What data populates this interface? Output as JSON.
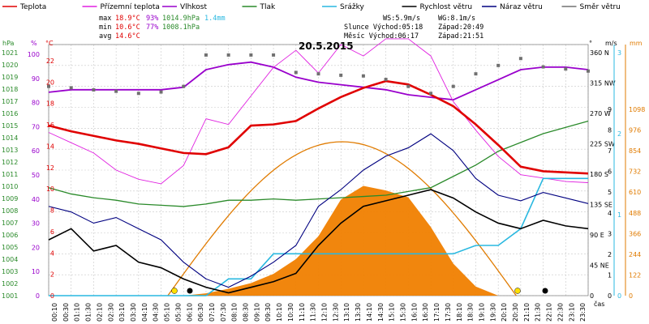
{
  "chart_data": {
    "type": "line",
    "title": "20.5.2015",
    "xlabel": "čas",
    "legend": [
      {
        "name": "Teplota",
        "color": "#e00000"
      },
      {
        "name": "Přízemní teplota",
        "color": "#e020e0"
      },
      {
        "name": "Vlhkost",
        "color": "#9900cc"
      },
      {
        "name": "Tlak",
        "color": "#2a8a2a"
      },
      {
        "name": "Srážky",
        "color": "#29b8e0"
      },
      {
        "name": "Rychlost větru",
        "color": "#000000"
      },
      {
        "name": "Náraz větru",
        "color": "#000080"
      },
      {
        "name": "Směr větru",
        "color": "#707070"
      }
    ],
    "stats": {
      "max": {
        "label": "max",
        "temp": "18.9°C",
        "hum": "93%",
        "press": "1014.9hPa",
        "rain": "1.4mm"
      },
      "min": {
        "label": "min",
        "temp": "10.6°C",
        "hum": "77%",
        "press": "1008.1hPa"
      },
      "avg": {
        "label": "avg",
        "temp": "14.6°C"
      }
    },
    "info": {
      "ws": "WS:5.9m/s",
      "wg": "WG:8.1m/s",
      "sun": "Slunce Východ:05:18",
      "sun_set": "Západ:20:49",
      "moon": "Měsíc  Východ:06:17",
      "moon_set": "Západ:21:51"
    },
    "axes_left": {
      "hpa": {
        "unit": "hPa",
        "color": "#2a8a2a",
        "ticks": [
          "1001",
          "1002",
          "1003",
          "1004",
          "1005",
          "1006",
          "1007",
          "1008",
          "1009",
          "1010",
          "1011",
          "1012",
          "1013",
          "1014",
          "1015",
          "1016",
          "1017",
          "1018",
          "1019",
          "1020",
          "1021"
        ]
      },
      "pct": {
        "unit": "%",
        "color": "#9900cc",
        "ticks": [
          "0",
          "10",
          "20",
          "30",
          "40",
          "50",
          "60",
          "70",
          "80",
          "90",
          "100"
        ]
      },
      "temp": {
        "unit": "°C",
        "color": "#e00000",
        "ticks": [
          "0",
          "2",
          "4",
          "6",
          "8",
          "10",
          "12",
          "14",
          "16",
          "18",
          "20",
          "22"
        ]
      }
    },
    "axes_right": {
      "dir": {
        "unit": "°",
        "ticks": [
          "0",
          "45 NE",
          "90 E",
          "135 SE",
          "180 S",
          "225 SW",
          "270 W",
          "315 NW",
          "360 N"
        ]
      },
      "ms": {
        "unit": "m/s",
        "ticks": [
          "0",
          "1",
          "2",
          "3",
          "4",
          "5",
          "6",
          "7",
          "8",
          "9"
        ],
        "ticks2": [
          "0",
          "1",
          "2",
          "3"
        ]
      },
      "rain": {
        "unit": "mm",
        "ticks": [
          "0",
          "122",
          "244",
          "366",
          "488",
          "610",
          "732",
          "854",
          "976",
          "1098"
        ]
      }
    },
    "x_ticks": [
      "00:10",
      "00:30",
      "01:10",
      "01:30",
      "02:10",
      "02:30",
      "03:10",
      "03:30",
      "04:10",
      "04:30",
      "05:10",
      "05:30",
      "06:10",
      "06:30",
      "07:10",
      "07:30",
      "08:10",
      "08:30",
      "09:10",
      "09:30",
      "10:10",
      "10:30",
      "11:10",
      "11:30",
      "12:10",
      "12:30",
      "13:10",
      "13:30",
      "14:10",
      "14:30",
      "15:10",
      "15:30",
      "16:10",
      "16:30",
      "17:10",
      "17:30",
      "18:10",
      "18:30",
      "19:10",
      "19:30",
      "20:10",
      "20:30",
      "21:10",
      "21:30",
      "22:10",
      "22:30",
      "23:10",
      "23:30"
    ],
    "hours": [
      0,
      1,
      2,
      3,
      4,
      5,
      6,
      7,
      8,
      9,
      10,
      11,
      12,
      13,
      14,
      15,
      16,
      17,
      18,
      19,
      20,
      21,
      22,
      23,
      24
    ],
    "temperature": [
      14.9,
      14.4,
      14.0,
      13.6,
      13.3,
      12.9,
      12.5,
      12.4,
      13.0,
      14.9,
      15.0,
      15.3,
      16.4,
      17.4,
      18.2,
      18.8,
      18.5,
      17.6,
      16.6,
      15.0,
      13.2,
      11.3,
      10.9,
      10.8,
      10.7
    ],
    "ground_temperature": [
      14.3,
      13.4,
      12.5,
      11.0,
      10.2,
      9.8,
      11.4,
      15.5,
      15.0,
      17.5,
      20.0,
      21.5,
      19.5,
      22.0,
      21.0,
      22.5,
      22.5,
      21.0,
      17.0,
      14.5,
      12.2,
      10.6,
      10.3,
      10.0,
      9.9
    ],
    "humidity": [
      81,
      82,
      82,
      82,
      82,
      82,
      83,
      90,
      92,
      93,
      91,
      87,
      85,
      84,
      83,
      82,
      80,
      79,
      78,
      82,
      86,
      90,
      91,
      91,
      90
    ],
    "pressure": [
      1009.6,
      1009.1,
      1008.8,
      1008.6,
      1008.3,
      1008.2,
      1008.1,
      1008.3,
      1008.6,
      1008.6,
      1008.7,
      1008.6,
      1008.7,
      1008.8,
      1008.9,
      1009.0,
      1009.3,
      1009.6,
      1010.5,
      1011.4,
      1012.5,
      1013.2,
      1013.9,
      1014.4,
      1014.9
    ],
    "rain_total": [
      0,
      0,
      0,
      0,
      0,
      0,
      0,
      0,
      0.2,
      0.2,
      0.5,
      0.5,
      0.5,
      0.5,
      0.5,
      0.5,
      0.5,
      0.5,
      0.5,
      0.6,
      0.6,
      0.8,
      1.4,
      1.4,
      1.4
    ],
    "wind_speed": [
      2.0,
      2.4,
      1.6,
      1.8,
      1.2,
      1.0,
      0.6,
      0.3,
      0.1,
      0.3,
      0.5,
      0.8,
      1.8,
      2.6,
      3.2,
      3.4,
      3.6,
      3.8,
      3.5,
      3.0,
      2.6,
      2.4,
      2.7,
      2.5,
      2.4
    ],
    "wind_gust": [
      3.2,
      3.0,
      2.6,
      2.8,
      2.4,
      2.0,
      1.2,
      0.6,
      0.3,
      0.7,
      1.2,
      1.8,
      3.2,
      3.8,
      4.5,
      5.0,
      5.3,
      5.8,
      5.2,
      4.2,
      3.6,
      3.4,
      3.7,
      3.5,
      3.3
    ],
    "wind_direction": [
      300,
      298,
      295,
      293,
      290,
      292,
      300,
      345,
      345,
      345,
      345,
      320,
      318,
      316,
      315,
      310,
      300,
      290,
      300,
      318,
      330,
      340,
      328,
      325,
      322
    ],
    "solar_radiation": [
      0,
      0,
      0,
      0,
      0,
      0,
      0,
      10,
      30,
      55,
      95,
      160,
      260,
      420,
      480,
      460,
      430,
      300,
      140,
      40,
      0,
      0,
      0,
      0,
      0
    ]
  }
}
